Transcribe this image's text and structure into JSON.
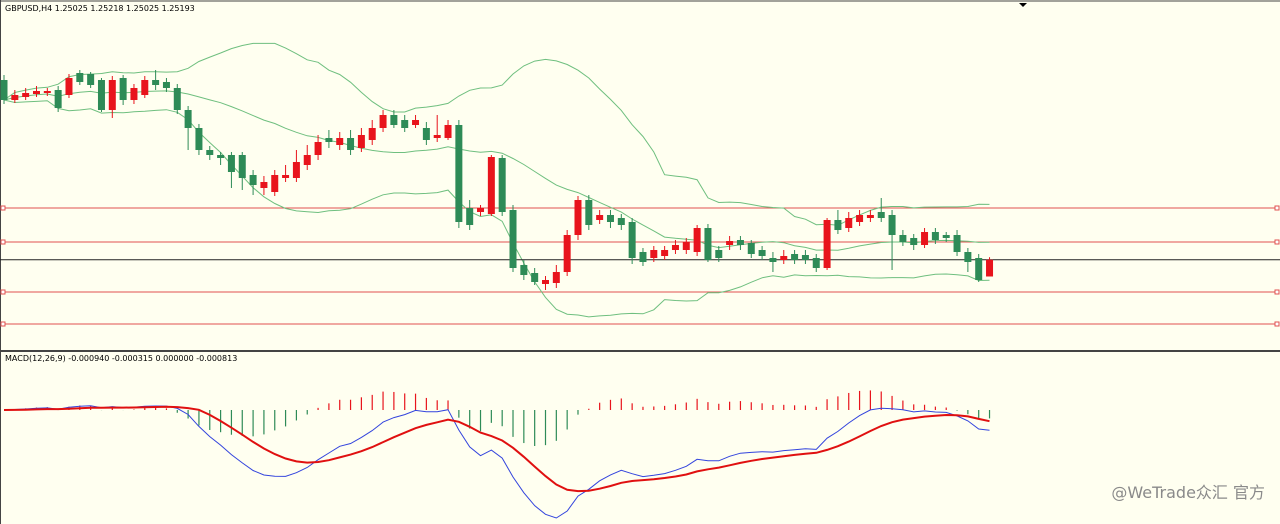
{
  "chart_data": {
    "type": "candlestick",
    "title": "GBPUSD,H4  1.25025 1.25218 1.25025 1.25193",
    "indicator_label": "MACD(12,26,9) -0.000940 -0.000315 0.000000 -0.000813",
    "watermark": "@WeTrade众汇 官方",
    "ylim": [
      1.2429,
      1.2779
    ],
    "up_color": "#e8141c",
    "down_color": "#2e8b57",
    "band_color": "#6fbf7f",
    "macd_color": "#3344dd",
    "signal_color": "#e01010",
    "level_color": "#e05050",
    "levels": [
      1.2571,
      1.2537,
      1.2487,
      1.2455
    ],
    "open": [
      1.2699,
      1.2679,
      1.2682,
      1.2685,
      1.2686,
      1.2689,
      1.2684,
      1.2706,
      1.2705,
      1.2699,
      1.2669,
      1.2701,
      1.2679,
      1.2684,
      1.2699,
      1.2697,
      1.2691,
      1.2669,
      1.2651,
      1.2629,
      1.2624,
      1.2624,
      1.2624,
      1.2604,
      1.2591,
      1.2587,
      1.2601,
      1.2601,
      1.2614,
      1.2624,
      1.2641,
      1.2634,
      1.2641,
      1.2631,
      1.2639,
      1.2651,
      1.2664,
      1.2659,
      1.2654,
      1.2651,
      1.2641,
      1.2641,
      1.2654,
      1.2571,
      1.2567,
      1.2565,
      1.2621,
      1.2569,
      1.2514,
      1.2506,
      1.2495,
      1.2496,
      1.2507,
      1.2544,
      1.2579,
      1.2559,
      1.2564,
      1.2561,
      1.2557,
      1.2527,
      1.2521,
      1.2523,
      1.2529,
      1.2529,
      1.2527,
      1.2551,
      1.2529,
      1.2534,
      1.2539,
      1.2536,
      1.2529,
      1.2521,
      1.2519,
      1.2525,
      1.2524,
      1.2521,
      1.2511,
      1.2559,
      1.2551,
      1.2557,
      1.2561,
      1.2567,
      1.2564,
      1.2544,
      1.2541,
      1.2534,
      1.2547,
      1.2544,
      1.2544,
      1.2527,
      1.2521,
      1.25025
    ],
    "high": [
      1.2704,
      1.2689,
      1.2691,
      1.2693,
      1.2691,
      1.2693,
      1.2705,
      1.2709,
      1.2707,
      1.2701,
      1.2703,
      1.2704,
      1.2695,
      1.2703,
      1.2709,
      1.2701,
      1.2695,
      1.2673,
      1.2655,
      1.2633,
      1.2627,
      1.2627,
      1.2627,
      1.2609,
      1.2603,
      1.2609,
      1.2614,
      1.2629,
      1.2634,
      1.2644,
      1.2649,
      1.2647,
      1.2649,
      1.2651,
      1.2659,
      1.2669,
      1.2669,
      1.2664,
      1.2664,
      1.2657,
      1.2664,
      1.2659,
      1.2659,
      1.2579,
      1.2574,
      1.2624,
      1.2624,
      1.2574,
      1.2519,
      1.2511,
      1.2503,
      1.2514,
      1.2549,
      1.2583,
      1.2584,
      1.2569,
      1.2569,
      1.2565,
      1.2561,
      1.2531,
      1.2533,
      1.2533,
      1.2539,
      1.2541,
      1.2554,
      1.2555,
      1.2533,
      1.2543,
      1.2543,
      1.2539,
      1.2533,
      1.2527,
      1.2529,
      1.2529,
      1.2529,
      1.2525,
      1.2561,
      1.2569,
      1.2567,
      1.2569,
      1.2569,
      1.2581,
      1.2569,
      1.2549,
      1.2545,
      1.2551,
      1.2551,
      1.2547,
      1.2549,
      1.2531,
      1.2525,
      1.25218
    ],
    "low": [
      1.2675,
      1.2676,
      1.2679,
      1.2682,
      1.2683,
      1.2667,
      1.2681,
      1.2694,
      1.2691,
      1.2667,
      1.2661,
      1.2674,
      1.2675,
      1.2681,
      1.2689,
      1.2687,
      1.2665,
      1.2629,
      1.2624,
      1.2619,
      1.2614,
      1.2591,
      1.2589,
      1.2584,
      1.2584,
      1.2583,
      1.2597,
      1.2597,
      1.2609,
      1.2619,
      1.2631,
      1.2629,
      1.2624,
      1.2627,
      1.2634,
      1.2647,
      1.2651,
      1.2647,
      1.2651,
      1.2634,
      1.2637,
      1.2639,
      1.2551,
      1.2549,
      1.2563,
      1.2563,
      1.2563,
      1.2507,
      1.2499,
      1.2494,
      1.2489,
      1.2491,
      1.2503,
      1.2539,
      1.2549,
      1.2555,
      1.2551,
      1.2549,
      1.2515,
      1.2513,
      1.2517,
      1.2519,
      1.2525,
      1.2525,
      1.2523,
      1.2517,
      1.2517,
      1.2529,
      1.2529,
      1.2521,
      1.2519,
      1.2507,
      1.2515,
      1.2515,
      1.2515,
      1.2507,
      1.2509,
      1.2545,
      1.2547,
      1.2553,
      1.2557,
      1.2557,
      1.2509,
      1.2533,
      1.2529,
      1.2531,
      1.2535,
      1.2537,
      1.2523,
      1.2507,
      1.2497,
      1.25025
    ],
    "close": [
      1.2679,
      1.2684,
      1.2686,
      1.2688,
      1.2688,
      1.2671,
      1.2701,
      1.2697,
      1.2694,
      1.2669,
      1.2699,
      1.2679,
      1.2691,
      1.2699,
      1.2694,
      1.2691,
      1.2669,
      1.2651,
      1.2629,
      1.2624,
      1.2621,
      1.2607,
      1.2601,
      1.2594,
      1.2597,
      1.2604,
      1.2604,
      1.2617,
      1.2624,
      1.2637,
      1.2637,
      1.2641,
      1.2629,
      1.2644,
      1.2651,
      1.2664,
      1.2654,
      1.2651,
      1.2659,
      1.2639,
      1.2644,
      1.2654,
      1.2557,
      1.2554,
      1.2571,
      1.2622,
      1.2567,
      1.2511,
      1.2504,
      1.2497,
      1.2499,
      1.2507,
      1.2544,
      1.2579,
      1.2554,
      1.2564,
      1.2557,
      1.2554,
      1.2521,
      1.2517,
      1.2529,
      1.2529,
      1.2534,
      1.2537,
      1.2551,
      1.2519,
      1.2521,
      1.2538,
      1.2534,
      1.2525,
      1.2523,
      1.2517,
      1.2523,
      1.2519,
      1.2519,
      1.2511,
      1.2559,
      1.2549,
      1.2561,
      1.2564,
      1.2564,
      1.2561,
      1.2544,
      1.2537,
      1.2534,
      1.2547,
      1.2539,
      1.2541,
      1.2527,
      1.2517,
      1.2499,
      1.25193
    ]
  }
}
